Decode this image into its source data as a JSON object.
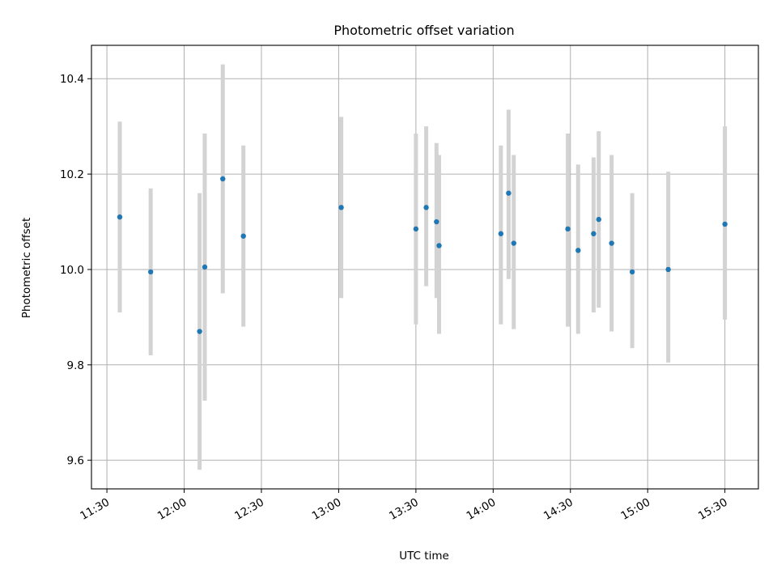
{
  "chart_data": {
    "type": "scatter",
    "title": "Photometric offset variation",
    "xlabel": "UTC time",
    "ylabel": "Photometric offset",
    "x_axis_type": "time",
    "xlim": [
      "11:24",
      "15:43"
    ],
    "ylim": [
      9.54,
      10.47
    ],
    "grid": true,
    "x_ticks": [
      "11:30",
      "12:00",
      "12:30",
      "13:00",
      "13:30",
      "14:00",
      "14:30",
      "15:00",
      "15:30"
    ],
    "y_ticks": [
      9.6,
      9.8,
      10.0,
      10.2,
      10.4
    ],
    "y_tick_labels": [
      "9.6",
      "9.8",
      "10.0",
      "10.2",
      "10.4"
    ],
    "colors": {
      "point": "#1f77b4",
      "errorbar": "#d3d3d3",
      "grid": "#b0b0b0"
    },
    "points": [
      {
        "x": "11:35",
        "y": 10.11,
        "yerr_low": 9.91,
        "yerr_high": 10.31
      },
      {
        "x": "11:47",
        "y": 9.995,
        "yerr_low": 9.82,
        "yerr_high": 10.17
      },
      {
        "x": "12:06",
        "y": 9.87,
        "yerr_low": 9.58,
        "yerr_high": 10.16
      },
      {
        "x": "12:08",
        "y": 10.005,
        "yerr_low": 9.725,
        "yerr_high": 10.285
      },
      {
        "x": "12:15",
        "y": 10.19,
        "yerr_low": 9.95,
        "yerr_high": 10.43
      },
      {
        "x": "12:23",
        "y": 10.07,
        "yerr_low": 9.88,
        "yerr_high": 10.26
      },
      {
        "x": "13:01",
        "y": 10.13,
        "yerr_low": 9.94,
        "yerr_high": 10.32
      },
      {
        "x": "13:30",
        "y": 10.085,
        "yerr_low": 9.885,
        "yerr_high": 10.285
      },
      {
        "x": "13:34",
        "y": 10.13,
        "yerr_low": 9.965,
        "yerr_high": 10.3
      },
      {
        "x": "13:38",
        "y": 10.1,
        "yerr_low": 9.94,
        "yerr_high": 10.265
      },
      {
        "x": "13:39",
        "y": 10.05,
        "yerr_low": 9.865,
        "yerr_high": 10.24
      },
      {
        "x": "14:03",
        "y": 10.075,
        "yerr_low": 9.885,
        "yerr_high": 10.26
      },
      {
        "x": "14:06",
        "y": 10.16,
        "yerr_low": 9.98,
        "yerr_high": 10.335
      },
      {
        "x": "14:08",
        "y": 10.055,
        "yerr_low": 9.875,
        "yerr_high": 10.24
      },
      {
        "x": "14:29",
        "y": 10.085,
        "yerr_low": 9.88,
        "yerr_high": 10.285
      },
      {
        "x": "14:33",
        "y": 10.04,
        "yerr_low": 9.865,
        "yerr_high": 10.22
      },
      {
        "x": "14:39",
        "y": 10.075,
        "yerr_low": 9.91,
        "yerr_high": 10.235
      },
      {
        "x": "14:41",
        "y": 10.105,
        "yerr_low": 9.92,
        "yerr_high": 10.29
      },
      {
        "x": "14:46",
        "y": 10.055,
        "yerr_low": 9.87,
        "yerr_high": 10.24
      },
      {
        "x": "14:54",
        "y": 9.995,
        "yerr_low": 9.835,
        "yerr_high": 10.16
      },
      {
        "x": "15:08",
        "y": 10.0,
        "yerr_low": 9.805,
        "yerr_high": 10.205
      },
      {
        "x": "15:30",
        "y": 10.095,
        "yerr_low": 9.895,
        "yerr_high": 10.3
      }
    ]
  }
}
